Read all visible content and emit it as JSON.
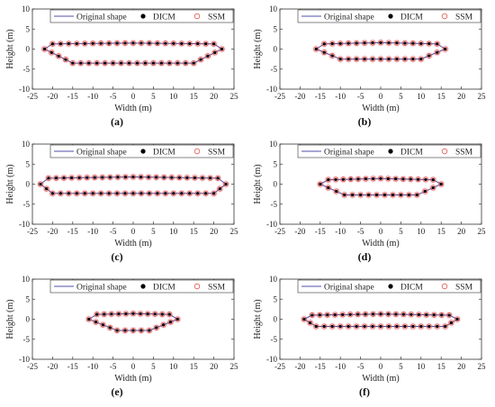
{
  "chart_data": [
    {
      "type": "line",
      "panel_label": "(a)",
      "xlabel": "Width (m)",
      "ylabel": "Height (m)",
      "xlim": [
        -25,
        25
      ],
      "ylim": [
        -10,
        10
      ],
      "xticks": [
        -25,
        -20,
        -15,
        -10,
        -5,
        0,
        5,
        10,
        15,
        20,
        25
      ],
      "yticks": [
        -10,
        -5,
        0,
        5,
        10
      ],
      "legend": {
        "placement": "top",
        "entries": [
          "Original shape",
          "DICM",
          "SSM"
        ]
      },
      "grid": false,
      "polygon": [
        [
          -22,
          0
        ],
        [
          -20,
          1.3
        ],
        [
          0,
          1.5
        ],
        [
          20,
          1.3
        ],
        [
          22,
          0
        ],
        [
          15,
          -3.5
        ],
        [
          -15,
          -3.5
        ]
      ],
      "series": [
        {
          "name": "Original shape",
          "style": "line",
          "color": "#4f4fa8"
        },
        {
          "name": "DICM",
          "style": "filled-circle",
          "color": "#000000"
        },
        {
          "name": "SSM",
          "style": "open-circle",
          "color": "#e0524a"
        }
      ]
    },
    {
      "type": "line",
      "panel_label": "(b)",
      "xlabel": "Width (m)",
      "ylabel": "Height (m)",
      "xlim": [
        -25,
        25
      ],
      "ylim": [
        -10,
        10
      ],
      "xticks": [
        -25,
        -20,
        -15,
        -10,
        -5,
        0,
        5,
        10,
        15,
        20,
        25
      ],
      "yticks": [
        -10,
        -5,
        0,
        5,
        10
      ],
      "legend": {
        "placement": "top",
        "entries": [
          "Original shape",
          "DICM",
          "SSM"
        ]
      },
      "grid": false,
      "polygon": [
        [
          -16,
          0
        ],
        [
          -14,
          1.3
        ],
        [
          0,
          1.6
        ],
        [
          14,
          1.3
        ],
        [
          16,
          0
        ],
        [
          10,
          -2.5
        ],
        [
          -10,
          -2.5
        ]
      ],
      "series": [
        {
          "name": "Original shape",
          "style": "line",
          "color": "#4f4fa8"
        },
        {
          "name": "DICM",
          "style": "filled-circle",
          "color": "#000000"
        },
        {
          "name": "SSM",
          "style": "open-circle",
          "color": "#e0524a"
        }
      ]
    },
    {
      "type": "line",
      "panel_label": "(c)",
      "xlabel": "Width (m)",
      "ylabel": "Height (m)",
      "xlim": [
        -25,
        25
      ],
      "ylim": [
        -10,
        10
      ],
      "xticks": [
        -25,
        -20,
        -15,
        -10,
        -5,
        0,
        5,
        10,
        15,
        20,
        25
      ],
      "yticks": [
        -10,
        -5,
        0,
        5,
        10
      ],
      "legend": {
        "placement": "top",
        "entries": [
          "Original shape",
          "DICM",
          "SSM"
        ]
      },
      "grid": false,
      "polygon": [
        [
          -23,
          0
        ],
        [
          -21,
          1.5
        ],
        [
          0,
          1.8
        ],
        [
          21,
          1.5
        ],
        [
          23,
          0
        ],
        [
          20,
          -2.3
        ],
        [
          -20,
          -2.3
        ]
      ],
      "series": [
        {
          "name": "Original shape",
          "style": "line",
          "color": "#4f4fa8"
        },
        {
          "name": "DICM",
          "style": "filled-circle",
          "color": "#000000"
        },
        {
          "name": "SSM",
          "style": "open-circle",
          "color": "#e0524a"
        }
      ]
    },
    {
      "type": "line",
      "panel_label": "(d)",
      "xlabel": "Width (m)",
      "ylabel": "Height (m)",
      "xlim": [
        -25,
        25
      ],
      "ylim": [
        -10,
        10
      ],
      "xticks": [
        -25,
        -20,
        -15,
        -10,
        -5,
        0,
        5,
        10,
        15,
        20,
        25
      ],
      "yticks": [
        -10,
        -5,
        0,
        5,
        10
      ],
      "legend": {
        "placement": "top",
        "entries": [
          "Original shape",
          "DICM",
          "SSM"
        ]
      },
      "grid": false,
      "polygon": [
        [
          -15,
          0
        ],
        [
          -13,
          1.1
        ],
        [
          0,
          1.4
        ],
        [
          13,
          1.1
        ],
        [
          15,
          0
        ],
        [
          9,
          -2.7
        ],
        [
          -9,
          -2.7
        ]
      ],
      "series": [
        {
          "name": "Original shape",
          "style": "line",
          "color": "#4f4fa8"
        },
        {
          "name": "DICM",
          "style": "filled-circle",
          "color": "#000000"
        },
        {
          "name": "SSM",
          "style": "open-circle",
          "color": "#e0524a"
        }
      ]
    },
    {
      "type": "line",
      "panel_label": "(e)",
      "xlabel": "Width (m)",
      "ylabel": "Height (m)",
      "xlim": [
        -25,
        25
      ],
      "ylim": [
        -10,
        10
      ],
      "xticks": [
        -25,
        -20,
        -15,
        -10,
        -5,
        0,
        5,
        10,
        15,
        20,
        25
      ],
      "yticks": [
        -10,
        -5,
        0,
        5,
        10
      ],
      "legend": {
        "placement": "top",
        "entries": [
          "Original shape",
          "DICM",
          "SSM"
        ]
      },
      "grid": false,
      "polygon": [
        [
          -11,
          0
        ],
        [
          -9,
          1.2
        ],
        [
          0,
          1.4
        ],
        [
          9,
          1.2
        ],
        [
          11,
          0
        ],
        [
          4,
          -2.8
        ],
        [
          -4,
          -2.8
        ]
      ],
      "series": [
        {
          "name": "Original shape",
          "style": "line",
          "color": "#4f4fa8"
        },
        {
          "name": "DICM",
          "style": "filled-circle",
          "color": "#000000"
        },
        {
          "name": "SSM",
          "style": "open-circle",
          "color": "#e0524a"
        }
      ]
    },
    {
      "type": "line",
      "panel_label": "(f)",
      "xlabel": "Width (m)",
      "ylabel": "Height (m)",
      "xlim": [
        -25,
        25
      ],
      "ylim": [
        -10,
        10
      ],
      "xticks": [
        -25,
        -20,
        -15,
        -10,
        -5,
        0,
        5,
        10,
        15,
        20,
        25
      ],
      "yticks": [
        -10,
        -5,
        0,
        5,
        10
      ],
      "legend": {
        "placement": "top",
        "entries": [
          "Original shape",
          "DICM",
          "SSM"
        ]
      },
      "grid": false,
      "polygon": [
        [
          -19,
          0
        ],
        [
          -17,
          1
        ],
        [
          0,
          1.3
        ],
        [
          17,
          1
        ],
        [
          19,
          0
        ],
        [
          16,
          -1.8
        ],
        [
          -16,
          -1.8
        ]
      ],
      "series": [
        {
          "name": "Original shape",
          "style": "line",
          "color": "#4f4fa8"
        },
        {
          "name": "DICM",
          "style": "filled-circle",
          "color": "#000000"
        },
        {
          "name": "SSM",
          "style": "open-circle",
          "color": "#e0524a"
        }
      ]
    }
  ],
  "colors": {
    "original_shape": "#4f4fa8",
    "dicm": "#000000",
    "ssm": "#e0524a",
    "ssm_halo": "#f6c9d3"
  }
}
